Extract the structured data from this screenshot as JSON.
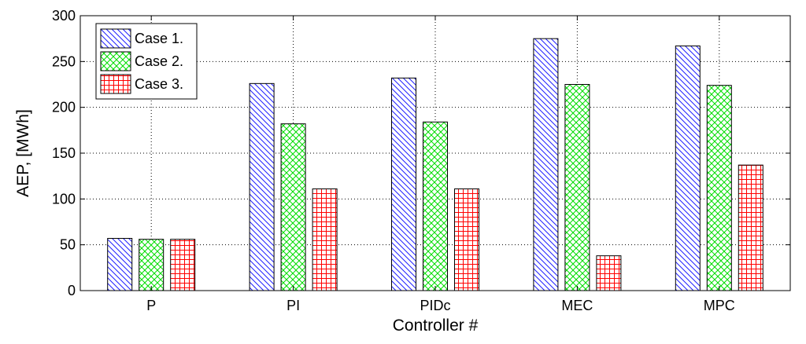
{
  "chart_data": {
    "type": "bar",
    "title": "",
    "xlabel": "Controller #",
    "ylabel": "AEP, [MWh]",
    "categories": [
      "P",
      "PI",
      "PIDc",
      "MEC",
      "MPC"
    ],
    "ylim": [
      0,
      300
    ],
    "yticks": [
      0,
      50,
      100,
      150,
      200,
      250,
      300
    ],
    "grid": true,
    "legend_position": "top-left",
    "series": [
      {
        "name": "Case 1.",
        "values": [
          57,
          226,
          232,
          275,
          267
        ],
        "color": "#1f1fff",
        "pattern": "diagonal-lines"
      },
      {
        "name": "Case 2.",
        "values": [
          56,
          182,
          184,
          225,
          224
        ],
        "color": "#00dd00",
        "pattern": "crosshatch"
      },
      {
        "name": "Case 3.",
        "values": [
          56,
          111,
          111,
          38,
          137
        ],
        "color": "#ff0000",
        "pattern": "grid"
      }
    ]
  }
}
